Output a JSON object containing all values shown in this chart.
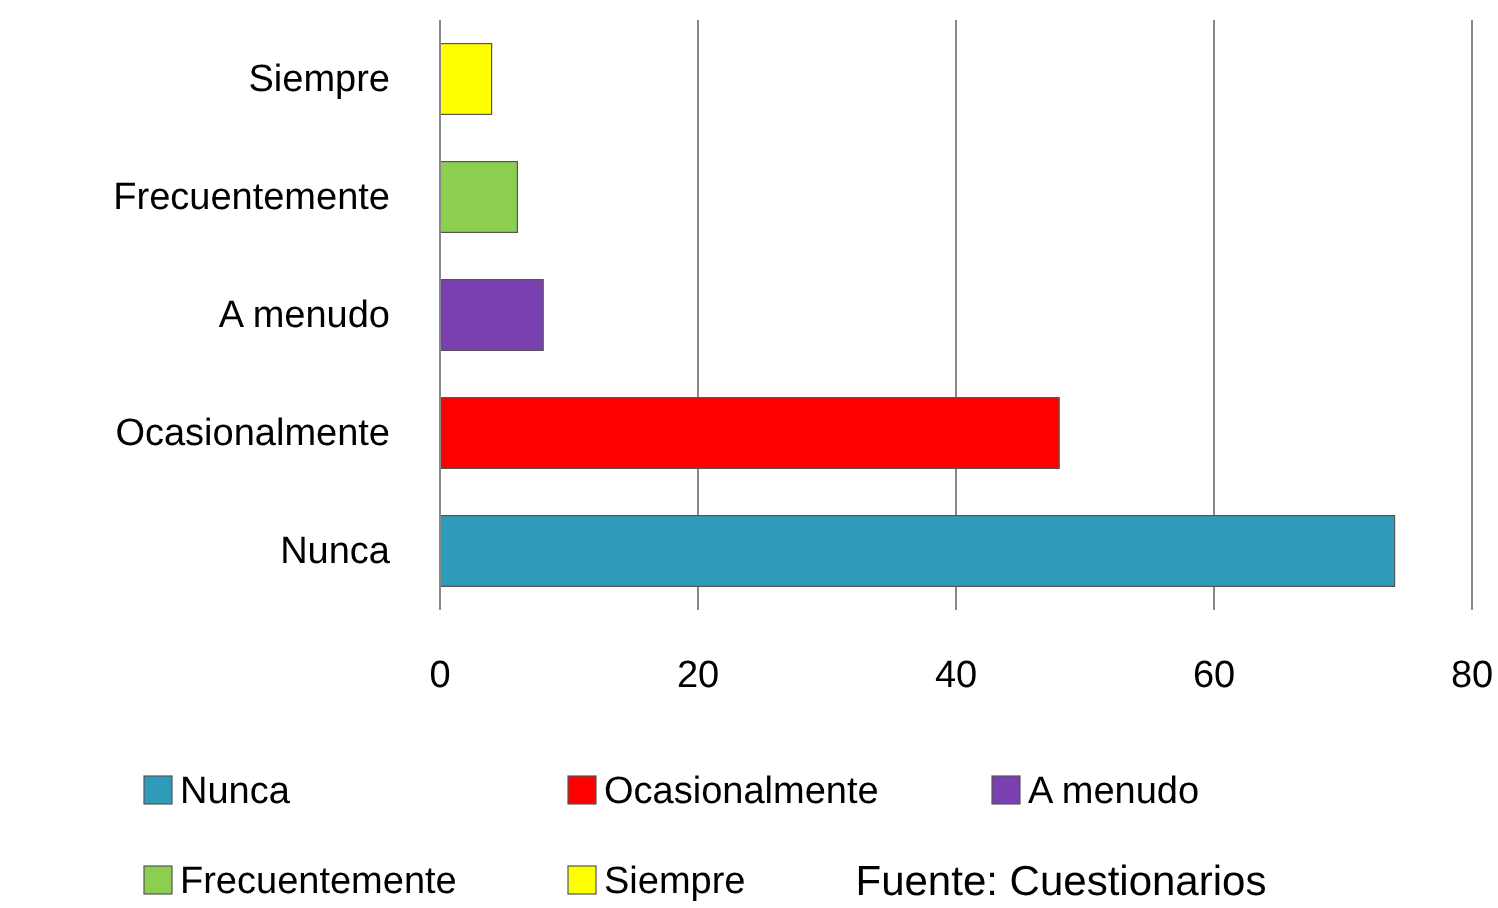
{
  "chart_data": {
    "type": "bar",
    "orientation": "horizontal",
    "categories": [
      "Siempre",
      "Frecuentemente",
      "A menudo",
      "Ocasionalmente",
      "Nunca"
    ],
    "series": [
      {
        "name": "Nunca",
        "color": "#2e9bb8",
        "values": [
          null,
          null,
          null,
          null,
          74
        ]
      },
      {
        "name": "Ocasionalmente",
        "color": "#ff0000",
        "values": [
          null,
          null,
          null,
          48,
          null
        ]
      },
      {
        "name": "A menudo",
        "color": "#7a3fb0",
        "values": [
          null,
          null,
          8,
          null,
          null
        ]
      },
      {
        "name": "Frecuentemente",
        "color": "#8ccf50",
        "values": [
          null,
          6,
          null,
          null,
          null
        ]
      },
      {
        "name": "Siempre",
        "color": "#ffff00",
        "values": [
          4,
          null,
          null,
          null,
          null
        ]
      }
    ],
    "xlim": [
      0,
      80
    ],
    "xticks": [
      0,
      20,
      40,
      60,
      80
    ],
    "grid": "x",
    "legend": "bottom",
    "annotations": [
      "Fuente: Cuestionarios"
    ]
  }
}
